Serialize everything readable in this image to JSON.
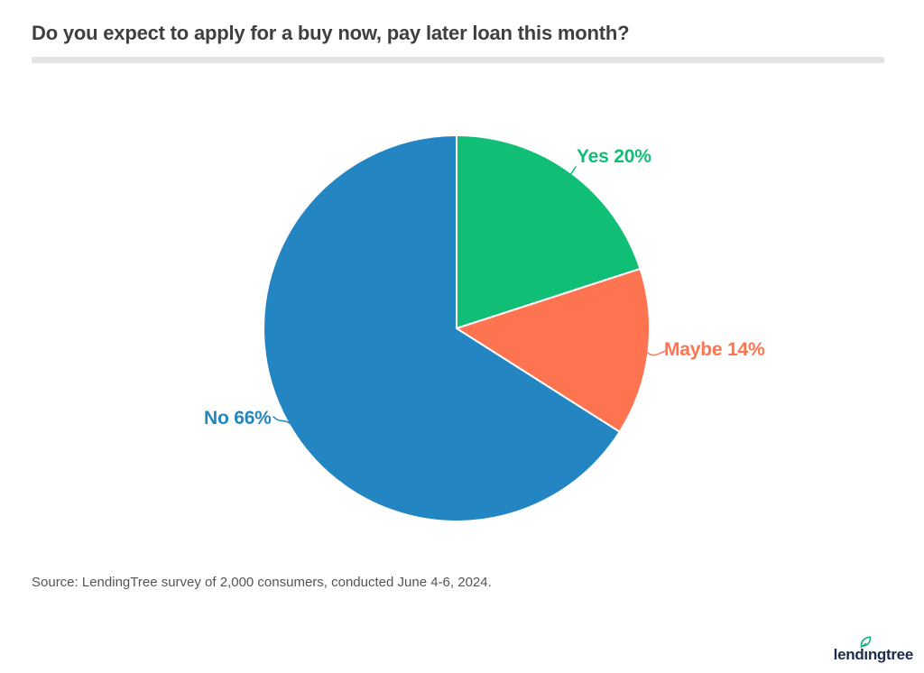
{
  "chart_data": {
    "type": "pie",
    "title": "Do you expect to apply for a buy now, pay later loan this month?",
    "slices": [
      {
        "label": "Yes",
        "value": 20,
        "display_label": "Yes 20%",
        "color": "#10BE75"
      },
      {
        "label": "Maybe",
        "value": 14,
        "display_label": "Maybe 14%",
        "color": "#FF7450"
      },
      {
        "label": "No",
        "value": 66,
        "display_label": "No 66%",
        "color": "#2385C1"
      }
    ],
    "unit": "%",
    "start_angle_deg": -90,
    "direction": "clockwise",
    "slice_stroke": "#FFFFFF",
    "legend": "none",
    "labels_position": "outside-callout"
  },
  "footer": {
    "source": "Source: LendingTree survey of 2,000 consumers, conducted June 4-6, 2024.",
    "logo_text": "lendingtree"
  },
  "colors": {
    "background": "#FFFFFF",
    "title": "#3F3F3F",
    "divider": "#E4E4E4",
    "source": "#545454",
    "logo_navy": "#1E2C49",
    "logo_leaf": "#19B179"
  }
}
